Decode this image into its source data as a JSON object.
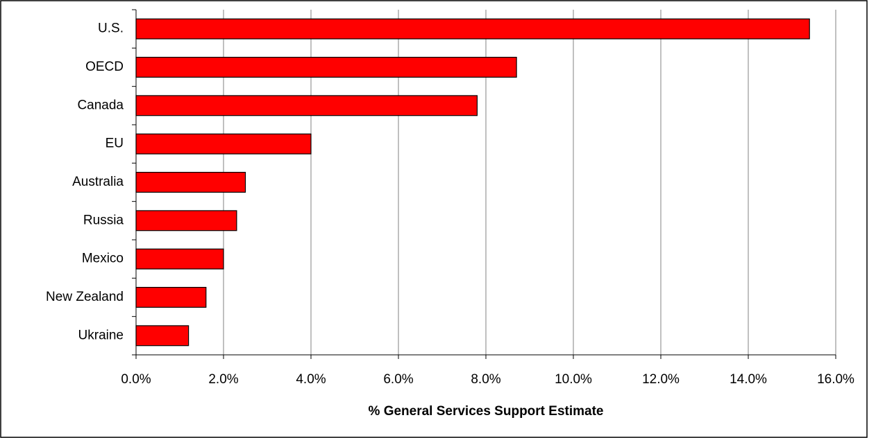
{
  "chart_data": {
    "type": "bar",
    "orientation": "horizontal",
    "x_label": "% General Services Support Estimate",
    "categories": [
      "U.S.",
      "OECD",
      "Canada",
      "EU",
      "Australia",
      "Russia",
      "Mexico",
      "New Zealand",
      "Ukraine"
    ],
    "values": [
      15.4,
      8.7,
      7.8,
      4.0,
      2.5,
      2.3,
      2.0,
      1.6,
      1.2
    ],
    "color": "#ff0000",
    "xlim": [
      0,
      16
    ],
    "xticks": [
      {
        "value": 0,
        "label": "0.0%"
      },
      {
        "value": 2,
        "label": "2.0%"
      },
      {
        "value": 4,
        "label": "4.0%"
      },
      {
        "value": 6,
        "label": "6.0%"
      },
      {
        "value": 8,
        "label": "8.0%"
      },
      {
        "value": 10,
        "label": "10.0%"
      },
      {
        "value": 12,
        "label": "12.0%"
      },
      {
        "value": 14,
        "label": "14.0%"
      },
      {
        "value": 16,
        "label": "16.0%"
      }
    ],
    "grid": true
  }
}
